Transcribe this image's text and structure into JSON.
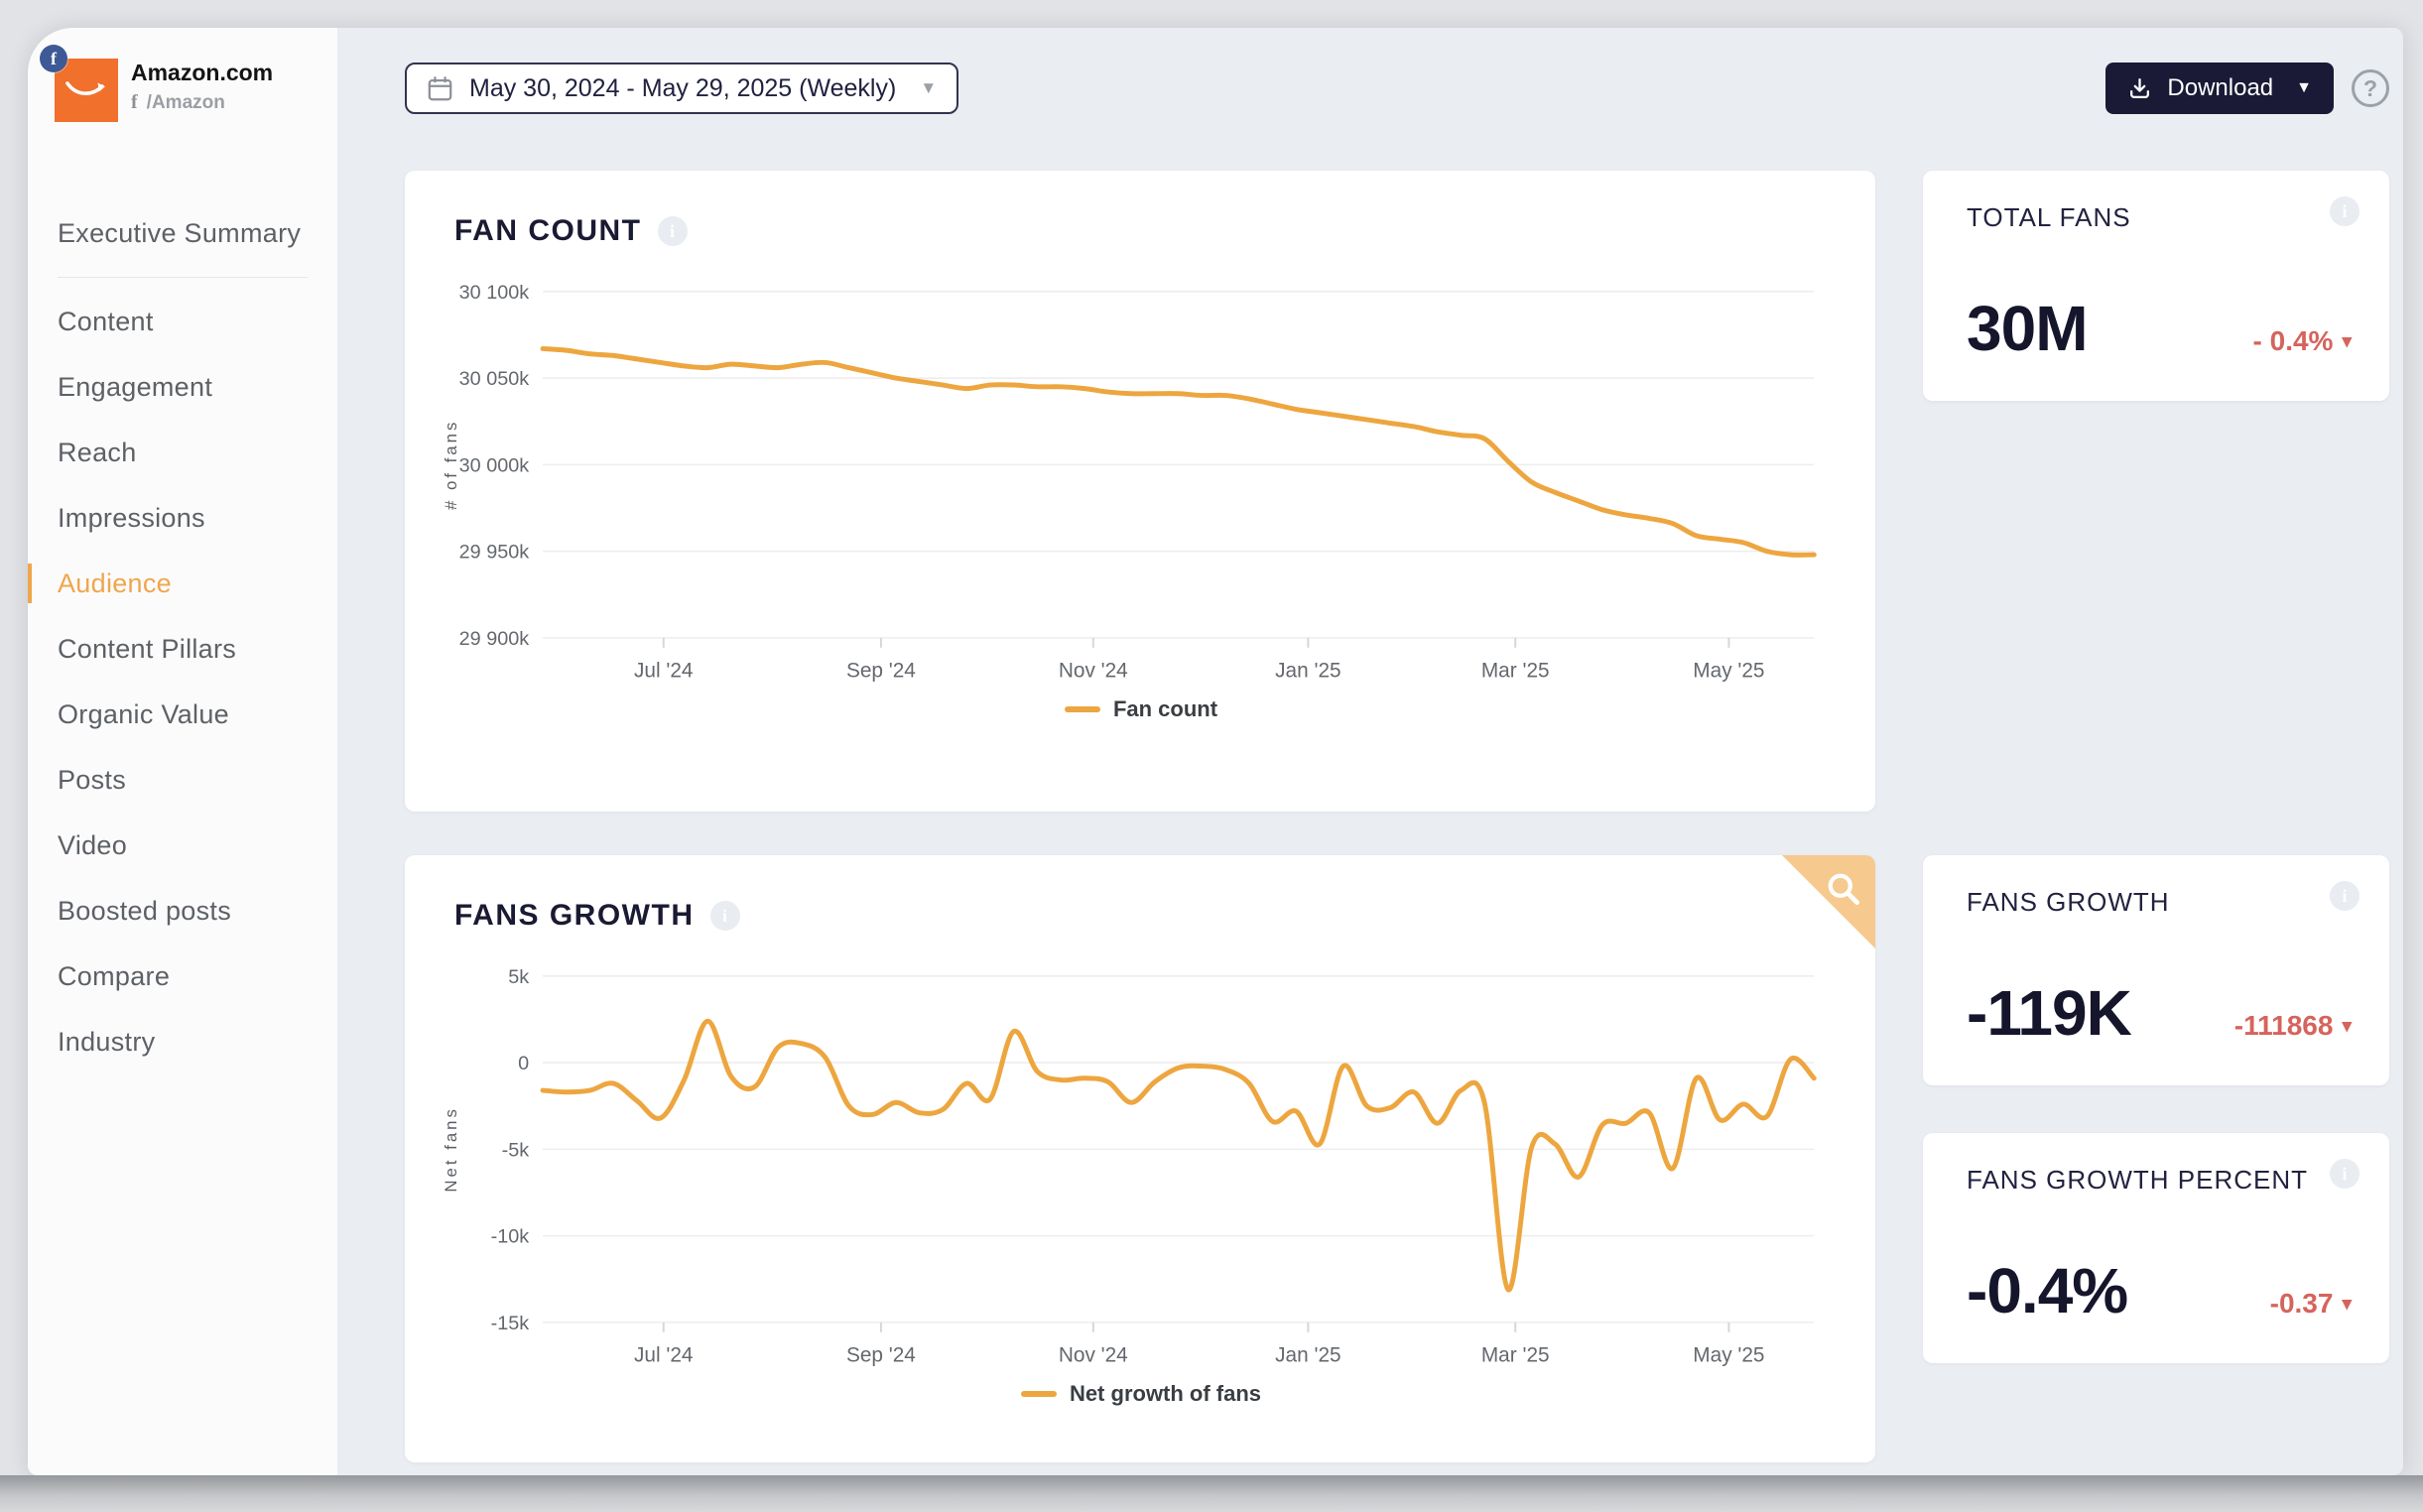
{
  "brand": {
    "name": "Amazon.com",
    "handle": "/Amazon",
    "network": "facebook",
    "facebook_glyph": "f"
  },
  "sidebar": {
    "divider_after": 0,
    "items": [
      {
        "label": "Executive Summary",
        "active": false
      },
      {
        "label": "Content",
        "active": false
      },
      {
        "label": "Engagement",
        "active": false
      },
      {
        "label": "Reach",
        "active": false
      },
      {
        "label": "Impressions",
        "active": false
      },
      {
        "label": "Audience",
        "active": true
      },
      {
        "label": "Content Pillars",
        "active": false
      },
      {
        "label": "Organic Value",
        "active": false
      },
      {
        "label": "Posts",
        "active": false
      },
      {
        "label": "Video",
        "active": false
      },
      {
        "label": "Boosted posts",
        "active": false
      },
      {
        "label": "Compare",
        "active": false
      },
      {
        "label": "Industry",
        "active": false
      }
    ]
  },
  "topbar": {
    "date_range": "May 30, 2024 - May 29, 2025 (Weekly)",
    "date_caret": "▼",
    "download_label": "Download",
    "download_caret": "▼",
    "help_label": "?"
  },
  "info_glyph": "i",
  "kpis": [
    {
      "label": "TOTAL FANS",
      "value": "30M",
      "delta": "- 0.4%",
      "delta_caret": "▾"
    },
    {
      "label": "FANS GROWTH",
      "value": "-119K",
      "delta": "-111868",
      "delta_caret": "▾"
    },
    {
      "label": "FANS GROWTH PERCENT",
      "value": "-0.4%",
      "delta": "-0.37",
      "delta_caret": "▾"
    }
  ],
  "colors": {
    "accent": "#eda63f",
    "active_nav": "#f0a64c",
    "negative": "#d5645c",
    "download_bg": "#1a1a36",
    "facebook_blue": "#3d5a96",
    "amazon_orange": "#f1702c",
    "corner_badge": "#f6c98e",
    "main_bg": "#eaedf2",
    "card_bg": "#ffffff",
    "grid_line": "#ededee",
    "axis_text": "#64686d"
  },
  "chart_data": [
    {
      "type": "line",
      "title": "FAN COUNT",
      "legend": "Fan count",
      "xlabel": "",
      "ylabel": "# of fans",
      "x_start": "May 30, 2024",
      "x_end": "May 29, 2025",
      "interval": "weekly",
      "units": "thousands of fans",
      "ylim": [
        29900,
        30100
      ],
      "grid": true,
      "legend_position": "bottom-center",
      "yticks": [
        {
          "v": 30100,
          "label": "30 100k"
        },
        {
          "v": 30050,
          "label": "30 050k"
        },
        {
          "v": 30000,
          "label": "30 000k"
        },
        {
          "v": 29950,
          "label": "29 950k"
        },
        {
          "v": 29900,
          "label": "29 900k"
        }
      ],
      "xticks": [
        {
          "f": 0.095,
          "label": "Jul '24"
        },
        {
          "f": 0.266,
          "label": "Sep '24"
        },
        {
          "f": 0.433,
          "label": "Nov '24"
        },
        {
          "f": 0.602,
          "label": "Jan '25"
        },
        {
          "f": 0.765,
          "label": "Mar '25"
        },
        {
          "f": 0.933,
          "label": "May '25"
        }
      ],
      "values": [
        30067,
        30066,
        30064,
        30063,
        30061,
        30059,
        30057,
        30056,
        30058,
        30057,
        30056,
        30058,
        30059,
        30056,
        30053,
        30050,
        30048,
        30046,
        30044,
        30046,
        30046,
        30045,
        30045,
        30044,
        30042,
        30041,
        30041,
        30041,
        30040,
        30040,
        30038,
        30035,
        30032,
        30030,
        30028,
        30026,
        30024,
        30022,
        30019,
        30017,
        30015,
        30002,
        29990,
        29984,
        29979,
        29974,
        29971,
        29969,
        29966,
        29959,
        29957,
        29955,
        29950,
        29948,
        29948
      ]
    },
    {
      "type": "line",
      "title": "FANS GROWTH",
      "legend": "Net growth of fans",
      "xlabel": "",
      "ylabel": "Net fans",
      "x_start": "May 30, 2024",
      "x_end": "May 29, 2025",
      "interval": "weekly",
      "units": "thousands of net fans",
      "ylim": [
        -15,
        5
      ],
      "grid": true,
      "legend_position": "bottom-center",
      "yticks": [
        {
          "v": 5,
          "label": "5k"
        },
        {
          "v": 0,
          "label": "0"
        },
        {
          "v": -5,
          "label": "-5k"
        },
        {
          "v": -10,
          "label": "-10k"
        },
        {
          "v": -15,
          "label": "-15k"
        }
      ],
      "xticks": [
        {
          "f": 0.095,
          "label": "Jul '24"
        },
        {
          "f": 0.266,
          "label": "Sep '24"
        },
        {
          "f": 0.433,
          "label": "Nov '24"
        },
        {
          "f": 0.602,
          "label": "Jan '25"
        },
        {
          "f": 0.765,
          "label": "Mar '25"
        },
        {
          "f": 0.933,
          "label": "May '25"
        }
      ],
      "values": [
        -1.6,
        -1.7,
        -1.6,
        -1.2,
        -2.2,
        -3.2,
        -1.0,
        2.4,
        -0.8,
        -1.4,
        0.9,
        1.1,
        0.3,
        -2.5,
        -3.0,
        -2.3,
        -2.9,
        -2.7,
        -1.2,
        -2.1,
        1.8,
        -0.5,
        -1.0,
        -0.9,
        -1.1,
        -2.3,
        -1.1,
        -0.3,
        -0.2,
        -0.4,
        -1.2,
        -3.4,
        -2.8,
        -4.7,
        -0.2,
        -2.5,
        -2.6,
        -1.7,
        -3.5,
        -1.6,
        -2.3,
        -13.1,
        -4.9,
        -4.7,
        -6.6,
        -3.6,
        -3.5,
        -2.9,
        -6.1,
        -0.9,
        -3.3,
        -2.4,
        -3.1,
        0.2,
        -0.9
      ]
    }
  ]
}
